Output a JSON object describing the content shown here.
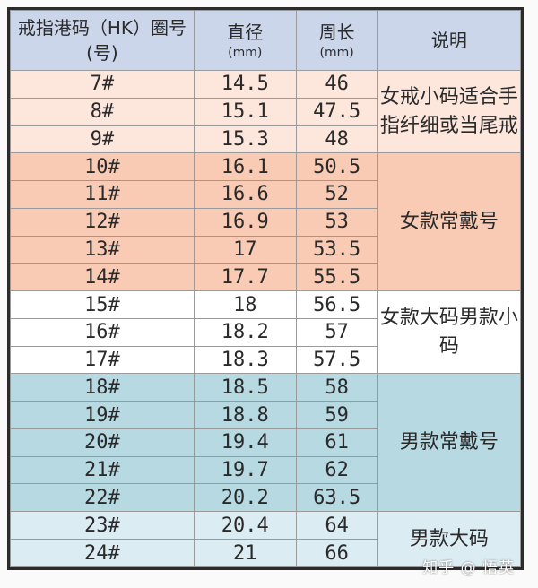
{
  "table": {
    "headers": {
      "size": "戒指港码（HK）圈号(号)",
      "diameter": "直径",
      "diameter_unit": "(mm)",
      "circumference": "周长",
      "circumference_unit": "(mm)",
      "note": "说明"
    },
    "rows": [
      {
        "size": "7#",
        "diameter": "14.5",
        "circumference": "46"
      },
      {
        "size": "8#",
        "diameter": "15.1",
        "circumference": "47.5"
      },
      {
        "size": "9#",
        "diameter": "15.3",
        "circumference": "48"
      },
      {
        "size": "10#",
        "diameter": "16.1",
        "circumference": "50.5"
      },
      {
        "size": "11#",
        "diameter": "16.6",
        "circumference": "52"
      },
      {
        "size": "12#",
        "diameter": "16.9",
        "circumference": "53"
      },
      {
        "size": "13#",
        "diameter": "17",
        "circumference": "53.5"
      },
      {
        "size": "14#",
        "diameter": "17.7",
        "circumference": "55.5"
      },
      {
        "size": "15#",
        "diameter": "18",
        "circumference": "56.5"
      },
      {
        "size": "16#",
        "diameter": "18.2",
        "circumference": "57"
      },
      {
        "size": "17#",
        "diameter": "18.3",
        "circumference": "57.5"
      },
      {
        "size": "18#",
        "diameter": "18.5",
        "circumference": "58"
      },
      {
        "size": "19#",
        "diameter": "18.8",
        "circumference": "59"
      },
      {
        "size": "20#",
        "diameter": "19.4",
        "circumference": "61"
      },
      {
        "size": "21#",
        "diameter": "19.7",
        "circumference": "62"
      },
      {
        "size": "22#",
        "diameter": "20.2",
        "circumference": "63.5"
      },
      {
        "size": "23#",
        "diameter": "20.4",
        "circumference": "64"
      },
      {
        "size": "24#",
        "diameter": "21",
        "circumference": "66"
      }
    ],
    "notes": [
      "女戒小码适合手指纤细或当尾戒",
      "女款常戴号",
      "女款大码男款小码",
      "男款常戴号",
      "男款大码"
    ],
    "colors": {
      "header": "#cbd6eb",
      "light_peach": "#fde6dc",
      "peach": "#f9cbb4",
      "white": "#ffffff",
      "teal": "#b6d9e2",
      "light_teal": "#dcecf3"
    }
  },
  "watermark": "知乎 @ 悟英"
}
